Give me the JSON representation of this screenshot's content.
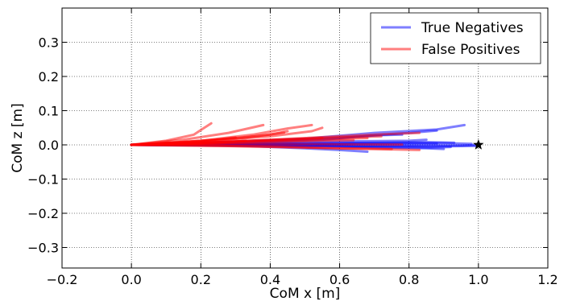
{
  "chart_data": {
    "type": "line",
    "xlabel": "CoM x [m]",
    "ylabel": "CoM z [m]",
    "xlim": [
      -0.2,
      1.2
    ],
    "ylim": [
      -0.36,
      0.4
    ],
    "xticks": [
      -0.2,
      0.0,
      0.2,
      0.4,
      0.6,
      0.8,
      1.0,
      1.2
    ],
    "xtick_labels": [
      "−0.2",
      "0.0",
      "0.2",
      "0.4",
      "0.6",
      "0.8",
      "1.0",
      "1.2"
    ],
    "yticks": [
      -0.3,
      -0.2,
      -0.1,
      0.0,
      0.1,
      0.2,
      0.3
    ],
    "ytick_labels": [
      "−0.3",
      "−0.2",
      "−0.1",
      "0.0",
      "0.1",
      "0.2",
      "0.3"
    ],
    "grid": true,
    "legend_position": "top-right",
    "colors": {
      "true_negatives": "#0000ff",
      "false_positives": "#ff0000"
    },
    "series": [
      {
        "name": "True Negatives",
        "color": "#0000ff",
        "trajectories": [
          [
            [
              0.0,
              0.0
            ],
            [
              0.25,
              0.008
            ],
            [
              0.5,
              0.018
            ],
            [
              0.7,
              0.035
            ],
            [
              0.88,
              0.045
            ],
            [
              0.96,
              0.058
            ]
          ],
          [
            [
              0.0,
              0.0
            ],
            [
              0.3,
              0.008
            ],
            [
              0.6,
              0.02
            ],
            [
              0.8,
              0.035
            ],
            [
              0.88,
              0.042
            ]
          ],
          [
            [
              0.0,
              0.0
            ],
            [
              0.3,
              0.005
            ],
            [
              0.55,
              0.015
            ],
            [
              0.7,
              0.028
            ],
            [
              0.78,
              0.03
            ]
          ],
          [
            [
              0.0,
              0.0
            ],
            [
              0.3,
              0.003
            ],
            [
              0.6,
              0.01
            ],
            [
              0.8,
              0.012
            ],
            [
              0.85,
              0.015
            ]
          ],
          [
            [
              0.0,
              0.0
            ],
            [
              0.3,
              -0.002
            ],
            [
              0.5,
              -0.01
            ],
            [
              0.6,
              -0.015
            ],
            [
              0.68,
              -0.02
            ]
          ],
          [
            [
              0.0,
              0.0
            ],
            [
              0.3,
              -0.001
            ],
            [
              0.6,
              -0.005
            ],
            [
              0.85,
              -0.01
            ],
            [
              0.9,
              -0.012
            ]
          ],
          [
            [
              0.0,
              0.0
            ],
            [
              0.4,
              0.002
            ],
            [
              0.7,
              0.004
            ],
            [
              0.9,
              0.005
            ],
            [
              0.98,
              0.003
            ]
          ],
          [
            [
              0.0,
              0.0
            ],
            [
              0.4,
              -0.001
            ],
            [
              0.7,
              -0.003
            ],
            [
              0.9,
              -0.004
            ],
            [
              1.0,
              -0.003
            ]
          ],
          [
            [
              0.0,
              0.0
            ],
            [
              0.35,
              0.0
            ],
            [
              0.7,
              -0.002
            ],
            [
              0.95,
              -0.002
            ],
            [
              1.0,
              0.0
            ]
          ],
          [
            [
              0.0,
              0.0
            ],
            [
              0.35,
              0.002
            ],
            [
              0.65,
              0.006
            ],
            [
              0.85,
              0.008
            ],
            [
              0.93,
              0.006
            ]
          ],
          [
            [
              0.0,
              0.0
            ],
            [
              0.3,
              0.001
            ],
            [
              0.6,
              0.003
            ],
            [
              0.82,
              0.005
            ],
            [
              0.88,
              0.004
            ]
          ],
          [
            [
              0.0,
              0.0
            ],
            [
              0.4,
              -0.002
            ],
            [
              0.7,
              -0.006
            ],
            [
              0.86,
              -0.008
            ],
            [
              0.92,
              -0.006
            ]
          ]
        ]
      },
      {
        "name": "False Positives",
        "color": "#ff0000",
        "trajectories": [
          [
            [
              0.0,
              0.0
            ],
            [
              0.1,
              0.012
            ],
            [
              0.18,
              0.03
            ],
            [
              0.21,
              0.05
            ],
            [
              0.23,
              0.063
            ]
          ],
          [
            [
              0.0,
              0.0
            ],
            [
              0.15,
              0.015
            ],
            [
              0.28,
              0.035
            ],
            [
              0.38,
              0.058
            ]
          ],
          [
            [
              0.0,
              0.0
            ],
            [
              0.2,
              0.012
            ],
            [
              0.35,
              0.03
            ],
            [
              0.45,
              0.048
            ],
            [
              0.52,
              0.058
            ]
          ],
          [
            [
              0.0,
              0.0
            ],
            [
              0.2,
              0.01
            ],
            [
              0.4,
              0.025
            ],
            [
              0.52,
              0.04
            ],
            [
              0.55,
              0.05
            ]
          ],
          [
            [
              0.0,
              0.0
            ],
            [
              0.15,
              0.008
            ],
            [
              0.3,
              0.02
            ],
            [
              0.4,
              0.03
            ],
            [
              0.45,
              0.04
            ]
          ],
          [
            [
              0.0,
              0.0
            ],
            [
              0.3,
              0.01
            ],
            [
              0.5,
              0.02
            ],
            [
              0.7,
              0.03
            ],
            [
              0.83,
              0.035
            ]
          ],
          [
            [
              0.0,
              0.0
            ],
            [
              0.2,
              0.006
            ],
            [
              0.4,
              0.014
            ],
            [
              0.6,
              0.022
            ],
            [
              0.72,
              0.025
            ]
          ],
          [
            [
              0.0,
              0.0
            ],
            [
              0.15,
              0.004
            ],
            [
              0.3,
              0.01
            ],
            [
              0.45,
              0.016
            ],
            [
              0.55,
              0.02
            ]
          ],
          [
            [
              0.0,
              0.0
            ],
            [
              0.2,
              0.003
            ],
            [
              0.4,
              0.008
            ],
            [
              0.55,
              0.012
            ],
            [
              0.64,
              0.014
            ]
          ],
          [
            [
              0.0,
              0.0
            ],
            [
              0.2,
              -0.002
            ],
            [
              0.4,
              -0.005
            ],
            [
              0.6,
              -0.01
            ],
            [
              0.75,
              -0.012
            ]
          ],
          [
            [
              0.0,
              0.0
            ],
            [
              0.25,
              -0.003
            ],
            [
              0.5,
              -0.008
            ],
            [
              0.7,
              -0.012
            ],
            [
              0.83,
              -0.015
            ]
          ],
          [
            [
              0.0,
              0.0
            ],
            [
              0.15,
              0.003
            ],
            [
              0.27,
              0.008
            ],
            [
              0.33,
              0.012
            ]
          ],
          [
            [
              0.0,
              0.0
            ],
            [
              0.25,
              0.005
            ],
            [
              0.45,
              0.012
            ],
            [
              0.62,
              0.018
            ],
            [
              0.68,
              0.02
            ]
          ],
          [
            [
              0.0,
              0.0
            ],
            [
              0.3,
              0.001
            ],
            [
              0.55,
              0.002
            ],
            [
              0.78,
              0.001
            ]
          ],
          [
            [
              0.0,
              0.0
            ],
            [
              0.2,
              0.009
            ],
            [
              0.32,
              0.02
            ],
            [
              0.41,
              0.032
            ],
            [
              0.44,
              0.036
            ]
          ],
          [
            [
              0.0,
              0.0
            ],
            [
              0.12,
              0.006
            ],
            [
              0.24,
              0.015
            ],
            [
              0.3,
              0.022
            ]
          ]
        ]
      }
    ],
    "annotations": [
      {
        "type": "star-marker",
        "x": 1.0,
        "y": 0.0,
        "color": "#000000"
      }
    ]
  }
}
